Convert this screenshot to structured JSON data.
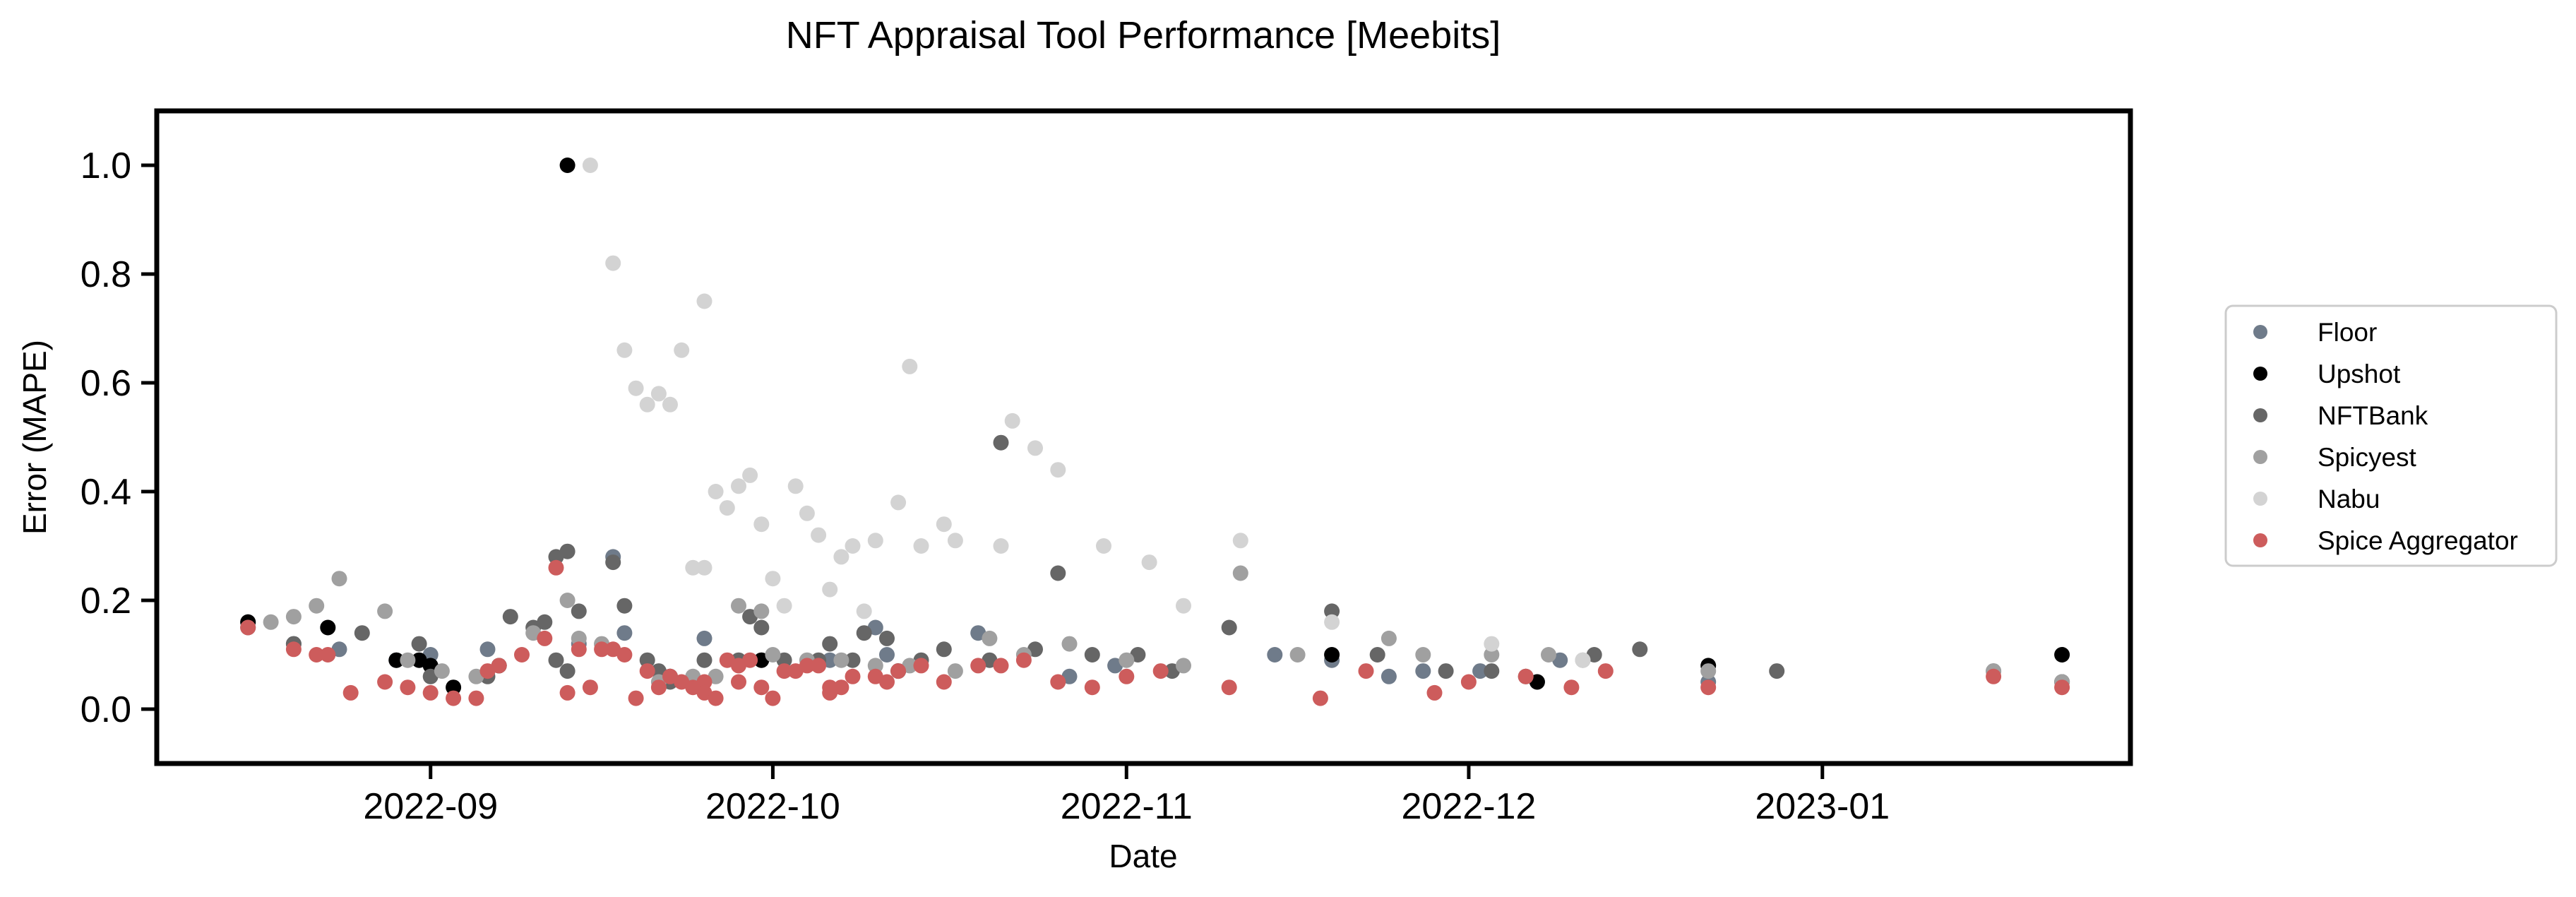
{
  "chart_data": {
    "type": "scatter",
    "title": "NFT Appraisal Tool Performance [Meebits]",
    "xlabel": "Date",
    "ylabel": "Error (MAPE)",
    "xlim": [
      "2022-08-08",
      "2023-01-28"
    ],
    "ylim": [
      -0.1,
      1.1
    ],
    "x_ticks": [
      "2022-09",
      "2022-10",
      "2022-11",
      "2022-12",
      "2023-01"
    ],
    "y_ticks": [
      "0.0",
      "0.2",
      "0.4",
      "0.6",
      "0.8",
      "1.0"
    ],
    "grid": false,
    "legend_position": "right",
    "series": [
      {
        "name": "Floor",
        "color": "#6f7b8a",
        "points": [
          [
            "2022-08-16",
            0.16
          ],
          [
            "2022-08-20",
            0.12
          ],
          [
            "2022-08-24",
            0.11
          ],
          [
            "2022-08-29",
            0.09
          ],
          [
            "2022-09-01",
            0.1
          ],
          [
            "2022-09-06",
            0.11
          ],
          [
            "2022-09-14",
            0.12
          ],
          [
            "2022-09-17",
            0.28
          ],
          [
            "2022-09-18",
            0.14
          ],
          [
            "2022-09-25",
            0.13
          ],
          [
            "2022-10-06",
            0.09
          ],
          [
            "2022-10-10",
            0.15
          ],
          [
            "2022-10-11",
            0.1
          ],
          [
            "2022-10-19",
            0.14
          ],
          [
            "2022-10-27",
            0.06
          ],
          [
            "2022-10-31",
            0.08
          ],
          [
            "2022-11-14",
            0.1
          ],
          [
            "2022-11-19",
            0.09
          ],
          [
            "2022-11-24",
            0.06
          ],
          [
            "2022-11-27",
            0.07
          ],
          [
            "2022-12-02",
            0.07
          ],
          [
            "2022-12-07",
            0.05
          ],
          [
            "2022-12-09",
            0.09
          ],
          [
            "2022-12-22",
            0.05
          ],
          [
            "2023-01-16",
            0.07
          ],
          [
            "2023-01-22",
            0.05
          ]
        ]
      },
      {
        "name": "Upshot",
        "color": "#000000",
        "points": [
          [
            "2022-08-16",
            0.16
          ],
          [
            "2022-08-23",
            0.15
          ],
          [
            "2022-08-29",
            0.09
          ],
          [
            "2022-08-31",
            0.09
          ],
          [
            "2022-09-01",
            0.08
          ],
          [
            "2022-09-03",
            0.04
          ],
          [
            "2022-09-07",
            0.08
          ],
          [
            "2022-09-13",
            1.0
          ],
          [
            "2022-09-22",
            0.06
          ],
          [
            "2022-09-30",
            0.09
          ],
          [
            "2022-10-12",
            0.07
          ],
          [
            "2022-11-19",
            0.1
          ],
          [
            "2022-12-07",
            0.05
          ],
          [
            "2022-12-22",
            0.08
          ],
          [
            "2023-01-22",
            0.1
          ]
        ]
      },
      {
        "name": "NFTBank",
        "color": "#666666",
        "points": [
          [
            "2022-08-16",
            0.15
          ],
          [
            "2022-08-20",
            0.12
          ],
          [
            "2022-08-26",
            0.14
          ],
          [
            "2022-08-31",
            0.12
          ],
          [
            "2022-09-01",
            0.06
          ],
          [
            "2022-09-06",
            0.06
          ],
          [
            "2022-09-08",
            0.17
          ],
          [
            "2022-09-10",
            0.15
          ],
          [
            "2022-09-11",
            0.16
          ],
          [
            "2022-09-12",
            0.28
          ],
          [
            "2022-09-12",
            0.09
          ],
          [
            "2022-09-13",
            0.07
          ],
          [
            "2022-09-13",
            0.29
          ],
          [
            "2022-09-14",
            0.18
          ],
          [
            "2022-09-17",
            0.27
          ],
          [
            "2022-09-18",
            0.19
          ],
          [
            "2022-09-20",
            0.09
          ],
          [
            "2022-09-21",
            0.07
          ],
          [
            "2022-09-22",
            0.05
          ],
          [
            "2022-09-25",
            0.09
          ],
          [
            "2022-09-28",
            0.09
          ],
          [
            "2022-09-29",
            0.17
          ],
          [
            "2022-09-30",
            0.15
          ],
          [
            "2022-10-02",
            0.09
          ],
          [
            "2022-10-05",
            0.09
          ],
          [
            "2022-10-06",
            0.12
          ],
          [
            "2022-10-08",
            0.09
          ],
          [
            "2022-10-09",
            0.14
          ],
          [
            "2022-10-11",
            0.13
          ],
          [
            "2022-10-14",
            0.09
          ],
          [
            "2022-10-16",
            0.11
          ],
          [
            "2022-10-20",
            0.09
          ],
          [
            "2022-10-21",
            0.49
          ],
          [
            "2022-10-24",
            0.11
          ],
          [
            "2022-10-26",
            0.25
          ],
          [
            "2022-10-29",
            0.1
          ],
          [
            "2022-11-02",
            0.1
          ],
          [
            "2022-11-05",
            0.07
          ],
          [
            "2022-11-10",
            0.15
          ],
          [
            "2022-11-19",
            0.18
          ],
          [
            "2022-11-23",
            0.1
          ],
          [
            "2022-11-29",
            0.07
          ],
          [
            "2022-12-03",
            0.07
          ],
          [
            "2022-12-06",
            0.06
          ],
          [
            "2022-12-12",
            0.1
          ],
          [
            "2022-12-16",
            0.11
          ],
          [
            "2022-12-28",
            0.07
          ],
          [
            "2023-01-22",
            0.05
          ]
        ]
      },
      {
        "name": "Spicyest",
        "color": "#a0a0a0",
        "points": [
          [
            "2022-08-18",
            0.16
          ],
          [
            "2022-08-20",
            0.17
          ],
          [
            "2022-08-22",
            0.19
          ],
          [
            "2022-08-24",
            0.24
          ],
          [
            "2022-08-28",
            0.18
          ],
          [
            "2022-08-30",
            0.09
          ],
          [
            "2022-09-02",
            0.07
          ],
          [
            "2022-09-05",
            0.06
          ],
          [
            "2022-09-10",
            0.14
          ],
          [
            "2022-09-13",
            0.2
          ],
          [
            "2022-09-14",
            0.13
          ],
          [
            "2022-09-16",
            0.12
          ],
          [
            "2022-09-21",
            0.05
          ],
          [
            "2022-09-24",
            0.06
          ],
          [
            "2022-09-26",
            0.06
          ],
          [
            "2022-09-28",
            0.19
          ],
          [
            "2022-09-30",
            0.18
          ],
          [
            "2022-10-01",
            0.1
          ],
          [
            "2022-10-04",
            0.09
          ],
          [
            "2022-10-07",
            0.09
          ],
          [
            "2022-10-10",
            0.08
          ],
          [
            "2022-10-13",
            0.08
          ],
          [
            "2022-10-17",
            0.07
          ],
          [
            "2022-10-20",
            0.13
          ],
          [
            "2022-10-23",
            0.1
          ],
          [
            "2022-10-27",
            0.12
          ],
          [
            "2022-11-01",
            0.09
          ],
          [
            "2022-11-06",
            0.08
          ],
          [
            "2022-11-11",
            0.25
          ],
          [
            "2022-11-16",
            0.1
          ],
          [
            "2022-11-24",
            0.13
          ],
          [
            "2022-11-27",
            0.1
          ],
          [
            "2022-12-03",
            0.1
          ],
          [
            "2022-12-08",
            0.1
          ],
          [
            "2022-12-11",
            0.09
          ],
          [
            "2022-12-22",
            0.07
          ],
          [
            "2023-01-16",
            0.07
          ],
          [
            "2023-01-22",
            0.05
          ]
        ]
      },
      {
        "name": "Nabu",
        "color": "#d3d3d3",
        "points": [
          [
            "2022-09-15",
            1.0
          ],
          [
            "2022-09-17",
            0.82
          ],
          [
            "2022-09-18",
            0.66
          ],
          [
            "2022-09-19",
            0.59
          ],
          [
            "2022-09-20",
            0.56
          ],
          [
            "2022-09-21",
            0.58
          ],
          [
            "2022-09-22",
            0.56
          ],
          [
            "2022-09-23",
            0.66
          ],
          [
            "2022-09-24",
            0.26
          ],
          [
            "2022-09-25",
            0.75
          ],
          [
            "2022-09-25",
            0.26
          ],
          [
            "2022-09-26",
            0.4
          ],
          [
            "2022-09-27",
            0.37
          ],
          [
            "2022-09-28",
            0.41
          ],
          [
            "2022-09-29",
            0.43
          ],
          [
            "2022-09-30",
            0.34
          ],
          [
            "2022-10-01",
            0.24
          ],
          [
            "2022-10-02",
            0.19
          ],
          [
            "2022-10-03",
            0.41
          ],
          [
            "2022-10-04",
            0.36
          ],
          [
            "2022-10-05",
            0.32
          ],
          [
            "2022-10-06",
            0.22
          ],
          [
            "2022-10-07",
            0.28
          ],
          [
            "2022-10-08",
            0.3
          ],
          [
            "2022-10-09",
            0.18
          ],
          [
            "2022-10-10",
            0.31
          ],
          [
            "2022-10-12",
            0.38
          ],
          [
            "2022-10-13",
            0.63
          ],
          [
            "2022-10-14",
            0.3
          ],
          [
            "2022-10-16",
            0.34
          ],
          [
            "2022-10-17",
            0.31
          ],
          [
            "2022-10-21",
            0.3
          ],
          [
            "2022-10-22",
            0.53
          ],
          [
            "2022-10-24",
            0.48
          ],
          [
            "2022-10-26",
            0.44
          ],
          [
            "2022-10-30",
            0.3
          ],
          [
            "2022-11-03",
            0.27
          ],
          [
            "2022-11-06",
            0.19
          ],
          [
            "2022-11-11",
            0.31
          ],
          [
            "2022-11-19",
            0.16
          ],
          [
            "2022-12-03",
            0.12
          ],
          [
            "2022-12-11",
            0.09
          ]
        ]
      },
      {
        "name": "Spice Aggregator",
        "color": "#cd5c5c",
        "points": [
          [
            "2022-08-16",
            0.15
          ],
          [
            "2022-08-20",
            0.11
          ],
          [
            "2022-08-22",
            0.1
          ],
          [
            "2022-08-23",
            0.1
          ],
          [
            "2022-08-25",
            0.03
          ],
          [
            "2022-08-28",
            0.05
          ],
          [
            "2022-08-30",
            0.04
          ],
          [
            "2022-09-01",
            0.03
          ],
          [
            "2022-09-03",
            0.02
          ],
          [
            "2022-09-05",
            0.02
          ],
          [
            "2022-09-06",
            0.07
          ],
          [
            "2022-09-07",
            0.08
          ],
          [
            "2022-09-09",
            0.1
          ],
          [
            "2022-09-11",
            0.13
          ],
          [
            "2022-09-12",
            0.26
          ],
          [
            "2022-09-13",
            0.03
          ],
          [
            "2022-09-14",
            0.11
          ],
          [
            "2022-09-15",
            0.04
          ],
          [
            "2022-09-16",
            0.11
          ],
          [
            "2022-09-17",
            0.11
          ],
          [
            "2022-09-18",
            0.1
          ],
          [
            "2022-09-19",
            0.02
          ],
          [
            "2022-09-20",
            0.07
          ],
          [
            "2022-09-21",
            0.04
          ],
          [
            "2022-09-22",
            0.06
          ],
          [
            "2022-09-23",
            0.05
          ],
          [
            "2022-09-24",
            0.04
          ],
          [
            "2022-09-25",
            0.05
          ],
          [
            "2022-09-25",
            0.03
          ],
          [
            "2022-09-26",
            0.02
          ],
          [
            "2022-09-27",
            0.09
          ],
          [
            "2022-09-28",
            0.08
          ],
          [
            "2022-09-28",
            0.05
          ],
          [
            "2022-09-29",
            0.09
          ],
          [
            "2022-09-30",
            0.04
          ],
          [
            "2022-10-01",
            0.02
          ],
          [
            "2022-10-02",
            0.07
          ],
          [
            "2022-10-03",
            0.07
          ],
          [
            "2022-10-04",
            0.08
          ],
          [
            "2022-10-05",
            0.08
          ],
          [
            "2022-10-06",
            0.04
          ],
          [
            "2022-10-06",
            0.03
          ],
          [
            "2022-10-07",
            0.04
          ],
          [
            "2022-10-08",
            0.06
          ],
          [
            "2022-10-10",
            0.06
          ],
          [
            "2022-10-11",
            0.05
          ],
          [
            "2022-10-12",
            0.07
          ],
          [
            "2022-10-14",
            0.08
          ],
          [
            "2022-10-16",
            0.05
          ],
          [
            "2022-10-19",
            0.08
          ],
          [
            "2022-10-21",
            0.08
          ],
          [
            "2022-10-23",
            0.09
          ],
          [
            "2022-10-26",
            0.05
          ],
          [
            "2022-10-29",
            0.04
          ],
          [
            "2022-11-01",
            0.06
          ],
          [
            "2022-11-04",
            0.07
          ],
          [
            "2022-11-10",
            0.04
          ],
          [
            "2022-11-18",
            0.02
          ],
          [
            "2022-11-22",
            0.07
          ],
          [
            "2022-11-28",
            0.03
          ],
          [
            "2022-12-01",
            0.05
          ],
          [
            "2022-12-06",
            0.06
          ],
          [
            "2022-12-10",
            0.04
          ],
          [
            "2022-12-13",
            0.07
          ],
          [
            "2022-12-22",
            0.04
          ],
          [
            "2023-01-16",
            0.06
          ],
          [
            "2023-01-22",
            0.04
          ]
        ]
      }
    ]
  }
}
